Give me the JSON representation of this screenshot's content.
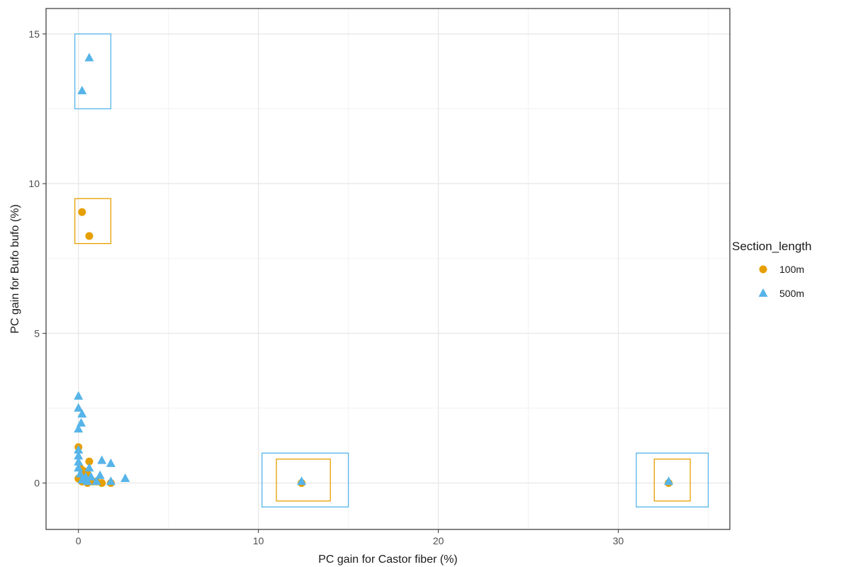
{
  "chart_data": {
    "type": "scatter",
    "xlabel": "PC gain for Castor fiber (%)",
    "ylabel": "PC gain for Bufo bufo (%)",
    "xlim": [
      -1.8,
      36.2
    ],
    "ylim": [
      -1.55,
      15.85
    ],
    "x_ticks": [
      0,
      10,
      20,
      30
    ],
    "y_ticks": [
      0,
      5,
      10,
      15
    ],
    "x_minor_ticks": [
      5,
      15,
      25,
      35
    ],
    "y_minor_ticks": [
      2.5,
      7.5,
      12.5
    ],
    "grid": true,
    "legend": {
      "title": "Section_length",
      "position": "right"
    },
    "series": [
      {
        "name": "100m",
        "shape": "circle",
        "color": "#E69F00",
        "points": [
          {
            "x": 0.2,
            "y": 9.05
          },
          {
            "x": 0.6,
            "y": 8.25
          },
          {
            "x": 0.0,
            "y": 1.2
          },
          {
            "x": 0.6,
            "y": 0.72
          },
          {
            "x": 0.1,
            "y": 0.5
          },
          {
            "x": 0.3,
            "y": 0.4
          },
          {
            "x": 0.5,
            "y": 0.3
          },
          {
            "x": 0.0,
            "y": 0.15
          },
          {
            "x": 0.2,
            "y": 0.05
          },
          {
            "x": 0.5,
            "y": 0.0
          },
          {
            "x": 0.8,
            "y": 0.05
          },
          {
            "x": 1.0,
            "y": 0.05
          },
          {
            "x": 1.3,
            "y": 0.0
          },
          {
            "x": 1.8,
            "y": 0.0
          },
          {
            "x": 12.4,
            "y": 0.0
          },
          {
            "x": 32.8,
            "y": 0.0
          }
        ]
      },
      {
        "name": "500m",
        "shape": "triangle",
        "color": "#56B4E9",
        "points": [
          {
            "x": 0.6,
            "y": 14.2
          },
          {
            "x": 0.2,
            "y": 13.1
          },
          {
            "x": 0.0,
            "y": 2.9
          },
          {
            "x": 0.0,
            "y": 2.5
          },
          {
            "x": 0.2,
            "y": 2.3
          },
          {
            "x": 0.15,
            "y": 2.0
          },
          {
            "x": 0.0,
            "y": 1.8
          },
          {
            "x": 0.0,
            "y": 1.1
          },
          {
            "x": 0.0,
            "y": 0.9
          },
          {
            "x": 0.0,
            "y": 0.7
          },
          {
            "x": 0.0,
            "y": 0.5
          },
          {
            "x": 0.1,
            "y": 0.3
          },
          {
            "x": 0.2,
            "y": 0.1
          },
          {
            "x": 0.4,
            "y": 0.2
          },
          {
            "x": 0.6,
            "y": 0.5
          },
          {
            "x": 0.7,
            "y": 0.2
          },
          {
            "x": 0.5,
            "y": 0.05
          },
          {
            "x": 1.3,
            "y": 0.75
          },
          {
            "x": 1.8,
            "y": 0.65
          },
          {
            "x": 1.2,
            "y": 0.25
          },
          {
            "x": 1.0,
            "y": 0.05
          },
          {
            "x": 1.8,
            "y": 0.05
          },
          {
            "x": 2.6,
            "y": 0.15
          },
          {
            "x": 12.4,
            "y": 0.05
          },
          {
            "x": 32.8,
            "y": 0.05
          }
        ]
      }
    ],
    "highlight_boxes": [
      {
        "series": "500m",
        "x": [
          -0.2,
          1.8
        ],
        "y": [
          12.5,
          15.0
        ]
      },
      {
        "series": "100m",
        "x": [
          -0.2,
          1.8
        ],
        "y": [
          8.0,
          9.5
        ]
      },
      {
        "series": "500m",
        "x": [
          10.2,
          15.0
        ],
        "y": [
          -0.8,
          1.0
        ]
      },
      {
        "series": "100m",
        "x": [
          11.0,
          14.0
        ],
        "y": [
          -0.6,
          0.8
        ]
      },
      {
        "series": "500m",
        "x": [
          31.0,
          35.0
        ],
        "y": [
          -0.8,
          1.0
        ]
      },
      {
        "series": "100m",
        "x": [
          32.0,
          34.0
        ],
        "y": [
          -0.6,
          0.8
        ]
      }
    ]
  }
}
